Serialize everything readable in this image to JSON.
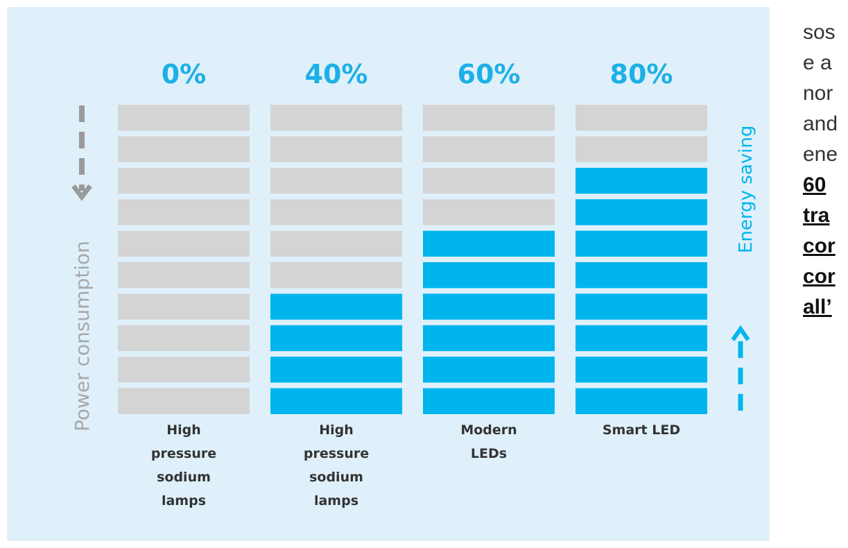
{
  "chart_data": {
    "type": "blocks",
    "categories": [
      "High pressure sodium lamps",
      "High pressure sodium lamps",
      "Modern LEDs",
      "Smart LED"
    ],
    "values": [
      0,
      40,
      60,
      80
    ],
    "value_labels": [
      "0%",
      "40%",
      "60%",
      "80%"
    ],
    "ylim": [
      0,
      100
    ],
    "color": "#00b5ee",
    "base_color": "#d4d4d4",
    "y_label": "Power consumption",
    "y2_label": "Energy saving"
  },
  "side_text": {
    "plain": [
      "sos",
      "e a",
      "nor",
      "and",
      "ene"
    ],
    "bold": [
      "60",
      "tra",
      "cor",
      "cor",
      "all’"
    ]
  }
}
